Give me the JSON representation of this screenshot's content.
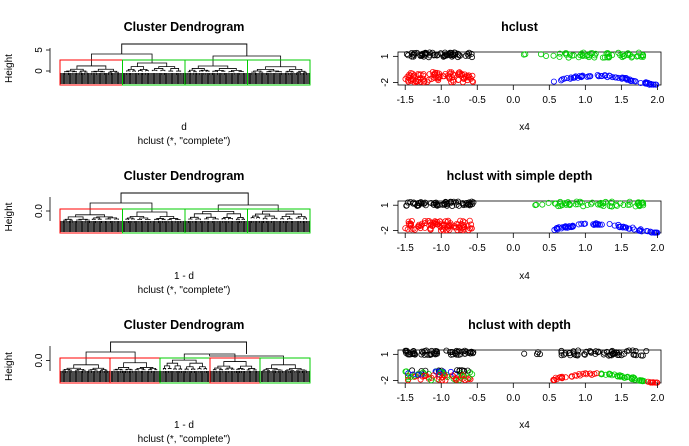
{
  "colors": {
    "background": "#ffffff",
    "cluster_1": "#000000",
    "cluster_2": "#ff0000",
    "cluster_3": "#00cd00",
    "cluster_4": "#0000ff",
    "rect_red": "#ff0000",
    "rect_green": "#00cd00"
  },
  "chart_data": [
    {
      "type": "dendrogram",
      "title": "Cluster Dendrogram",
      "ylabel": "Height",
      "xlabel": "d",
      "sub": "hclust (*, \"complete\")",
      "yticks": [
        "0",
        "5"
      ],
      "ylim": [
        0,
        6
      ],
      "top_merge_height": 5.2,
      "rect_colors": [
        "red",
        "green",
        "green",
        "green"
      ]
    },
    {
      "type": "scatter",
      "title": "hclust",
      "xlabel": "x4",
      "ylabel": "",
      "xlim": [
        -1.6,
        2.05
      ],
      "ylim": [
        -2.3,
        1.5
      ],
      "xticks": [
        "-1.5",
        "-1.0",
        "-0.5",
        "0.0",
        "0.5",
        "1.0",
        "1.5",
        "2.0"
      ],
      "yticks": [
        "1",
        "-2"
      ],
      "assignment": {
        "top_left": "black",
        "bottom_left": "red",
        "top_right": "green",
        "curve": "blue"
      }
    },
    {
      "type": "dendrogram",
      "title": "Cluster Dendrogram",
      "ylabel": "Height",
      "xlabel": "1 - d",
      "sub": "hclust (*, \"complete\")",
      "yticks": [
        "0.0"
      ],
      "ylim": [
        0,
        1
      ],
      "top_merge_height": 0.95,
      "rect_colors": [
        "red",
        "green",
        "green",
        "green"
      ]
    },
    {
      "type": "scatter",
      "title": "hclust with simple depth",
      "xlabel": "x4",
      "ylabel": "",
      "xlim": [
        -1.6,
        2.05
      ],
      "ylim": [
        -2.3,
        1.5
      ],
      "xticks": [
        "-1.5",
        "-1.0",
        "-0.5",
        "0.0",
        "0.5",
        "1.0",
        "1.5",
        "2.0"
      ],
      "yticks": [
        "1",
        "-2"
      ],
      "assignment": {
        "top_left": "black",
        "bottom_left": "red",
        "top_right": "green",
        "curve": "blue"
      }
    },
    {
      "type": "dendrogram",
      "title": "Cluster Dendrogram",
      "ylabel": "Height",
      "xlabel": "1 - d",
      "sub": "hclust (*, \"complete\")",
      "yticks": [
        "0.0"
      ],
      "ylim": [
        0,
        1
      ],
      "top_merge_height": 0.95,
      "rect_colors": [
        "red",
        "red",
        "green",
        "red",
        "green"
      ]
    },
    {
      "type": "scatter",
      "title": "hclust with depth",
      "xlabel": "x4",
      "ylabel": "",
      "xlim": [
        -1.6,
        2.05
      ],
      "ylim": [
        -2.3,
        1.5
      ],
      "xticks": [
        "-1.5",
        "-1.0",
        "-0.5",
        "0.0",
        "0.5",
        "1.0",
        "1.5",
        "2.0"
      ],
      "yticks": [
        "1",
        "-2"
      ],
      "assignment": {
        "top_left": "black",
        "bottom_left": "mixed",
        "top_right": "black",
        "curve": "red-green"
      }
    }
  ]
}
